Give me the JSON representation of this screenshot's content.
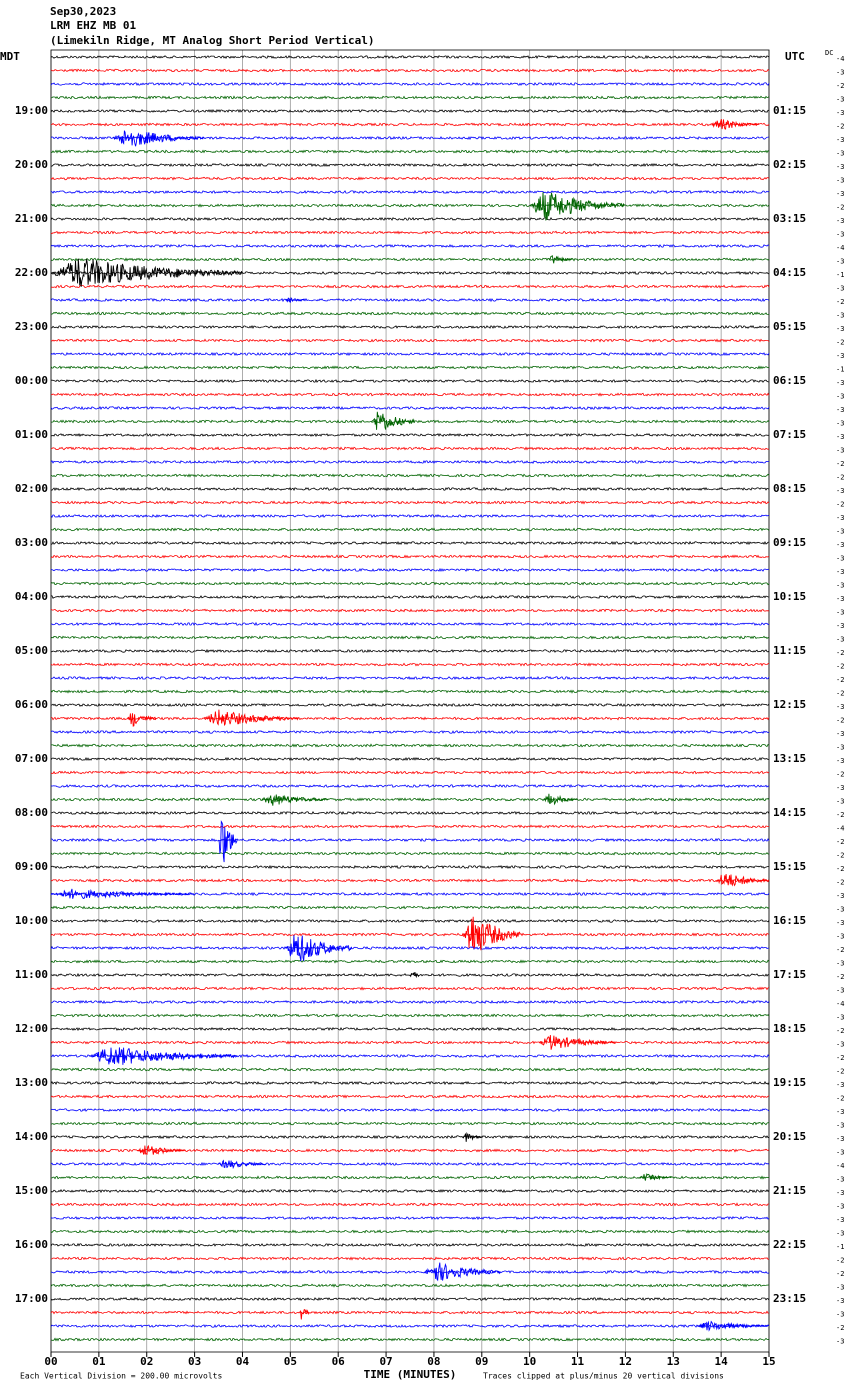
{
  "chart_data": {
    "type": "seismogram",
    "title_lines": [
      "Sep30,2023",
      "LRM EHZ MB 01",
      "(Limekiln Ridge, MT Analog Short Period Vertical)"
    ],
    "left_zone": "MDT",
    "right_zone": "UTC",
    "dc_label": "DC",
    "hour_labels_mdt": [
      "19:00",
      "20:00",
      "21:00",
      "22:00",
      "23:00",
      "00:00",
      "01:00",
      "02:00",
      "03:00",
      "04:00",
      "05:00",
      "06:00",
      "07:00",
      "08:00",
      "09:00",
      "10:00",
      "11:00",
      "12:00",
      "13:00",
      "14:00",
      "15:00",
      "16:00",
      "17:00"
    ],
    "hour_labels_utc": [
      "01:15",
      "02:15",
      "03:15",
      "04:15",
      "05:15",
      "06:15",
      "07:15",
      "08:15",
      "09:15",
      "10:15",
      "11:15",
      "12:15",
      "13:15",
      "14:15",
      "15:15",
      "16:15",
      "17:15",
      "18:15",
      "19:15",
      "20:15",
      "21:15",
      "22:15",
      "23:15"
    ],
    "dc_offsets": [
      -4,
      -3,
      -2,
      -3,
      -3,
      -2,
      -3,
      -3,
      -3,
      -3,
      -3,
      -2,
      -3,
      -3,
      -4,
      -3,
      -1,
      -3,
      -2,
      -3,
      -3,
      -2,
      -3,
      -1,
      -3,
      -3,
      -3,
      -3,
      -3,
      -3,
      -2,
      -2,
      -3,
      -2,
      -3,
      -3,
      -3,
      -3,
      -3,
      -3,
      -3,
      -3,
      -3,
      -3,
      -2,
      -2,
      -2,
      -2,
      -3,
      -2,
      -3,
      -3,
      -3,
      -2,
      -3,
      -3,
      -2,
      -4,
      -2,
      -2,
      -2,
      -2,
      -3,
      -3,
      -3,
      -3,
      -2,
      -3,
      -2,
      -3,
      -4,
      -3,
      -2,
      -3,
      -2,
      -2,
      -3,
      -2,
      -3,
      -3,
      -3,
      -3,
      -4,
      -3,
      -3,
      -3,
      -3,
      -3,
      -1,
      -2,
      -2,
      -3,
      -3,
      -3,
      -2,
      -3
    ],
    "colors": [
      "#000000",
      "#ff0000",
      "#0000ff",
      "#006400"
    ],
    "events": [
      {
        "trace": 5,
        "start": 13.8,
        "end": 14.8,
        "amplitude": 0.5
      },
      {
        "trace": 6,
        "start": 1.3,
        "end": 3.2,
        "amplitude": 0.8
      },
      {
        "trace": 11,
        "start": 10.0,
        "end": 12.0,
        "amplitude": 1.2
      },
      {
        "trace": 15,
        "start": 10.4,
        "end": 10.9,
        "amplitude": 0.4
      },
      {
        "trace": 16,
        "start": 0.0,
        "end": 4.0,
        "amplitude": 1.2
      },
      {
        "trace": 18,
        "start": 4.9,
        "end": 5.3,
        "amplitude": 0.3
      },
      {
        "trace": 27,
        "start": 6.7,
        "end": 7.6,
        "amplitude": 1.0
      },
      {
        "trace": 49,
        "start": 1.6,
        "end": 2.2,
        "amplitude": 0.7
      },
      {
        "trace": 49,
        "start": 3.2,
        "end": 5.2,
        "amplitude": 0.7
      },
      {
        "trace": 55,
        "start": 4.4,
        "end": 5.8,
        "amplitude": 0.5
      },
      {
        "trace": 55,
        "start": 10.3,
        "end": 11.0,
        "amplitude": 0.5
      },
      {
        "trace": 58,
        "start": 3.5,
        "end": 3.9,
        "amplitude": 2.5
      },
      {
        "trace": 61,
        "start": 13.9,
        "end": 15.0,
        "amplitude": 0.7
      },
      {
        "trace": 62,
        "start": 0.0,
        "end": 3.0,
        "amplitude": 0.4
      },
      {
        "trace": 65,
        "start": 8.6,
        "end": 9.8,
        "amplitude": 1.8
      },
      {
        "trace": 66,
        "start": 4.9,
        "end": 6.3,
        "amplitude": 1.3
      },
      {
        "trace": 68,
        "start": 7.5,
        "end": 7.7,
        "amplitude": 0.6
      },
      {
        "trace": 73,
        "start": 10.2,
        "end": 11.8,
        "amplitude": 0.6
      },
      {
        "trace": 74,
        "start": 0.8,
        "end": 3.9,
        "amplitude": 0.8
      },
      {
        "trace": 80,
        "start": 8.6,
        "end": 9.0,
        "amplitude": 0.4
      },
      {
        "trace": 81,
        "start": 1.8,
        "end": 2.8,
        "amplitude": 0.5
      },
      {
        "trace": 82,
        "start": 3.5,
        "end": 4.5,
        "amplitude": 0.4
      },
      {
        "trace": 83,
        "start": 12.3,
        "end": 13.0,
        "amplitude": 0.3
      },
      {
        "trace": 90,
        "start": 7.8,
        "end": 9.4,
        "amplitude": 0.8
      },
      {
        "trace": 93,
        "start": 5.2,
        "end": 5.4,
        "amplitude": 0.6
      },
      {
        "trace": 94,
        "start": 13.5,
        "end": 15.0,
        "amplitude": 0.4
      }
    ],
    "xlim": [
      0,
      15
    ],
    "xticks": [
      {
        "value": 0,
        "label": "00"
      },
      {
        "value": 1,
        "label": "01"
      },
      {
        "value": 2,
        "label": "02"
      },
      {
        "value": 3,
        "label": "03"
      },
      {
        "value": 4,
        "label": "04"
      },
      {
        "value": 5,
        "label": "05"
      },
      {
        "value": 6,
        "label": "06"
      },
      {
        "value": 7,
        "label": "07"
      },
      {
        "value": 8,
        "label": "08"
      },
      {
        "value": 9,
        "label": "09"
      },
      {
        "value": 10,
        "label": "10"
      },
      {
        "value": 11,
        "label": "11"
      },
      {
        "value": 12,
        "label": "12"
      },
      {
        "value": 13,
        "label": "13"
      },
      {
        "value": 14,
        "label": "14"
      },
      {
        "value": 15,
        "label": "15"
      }
    ],
    "x_label": "TIME (MINUTES)",
    "scale_note": "Each Vertical Division =  200.00 microvolts",
    "clip_note": "Traces clipped at plus/minus 20 vertical divisions",
    "grid": true
  }
}
